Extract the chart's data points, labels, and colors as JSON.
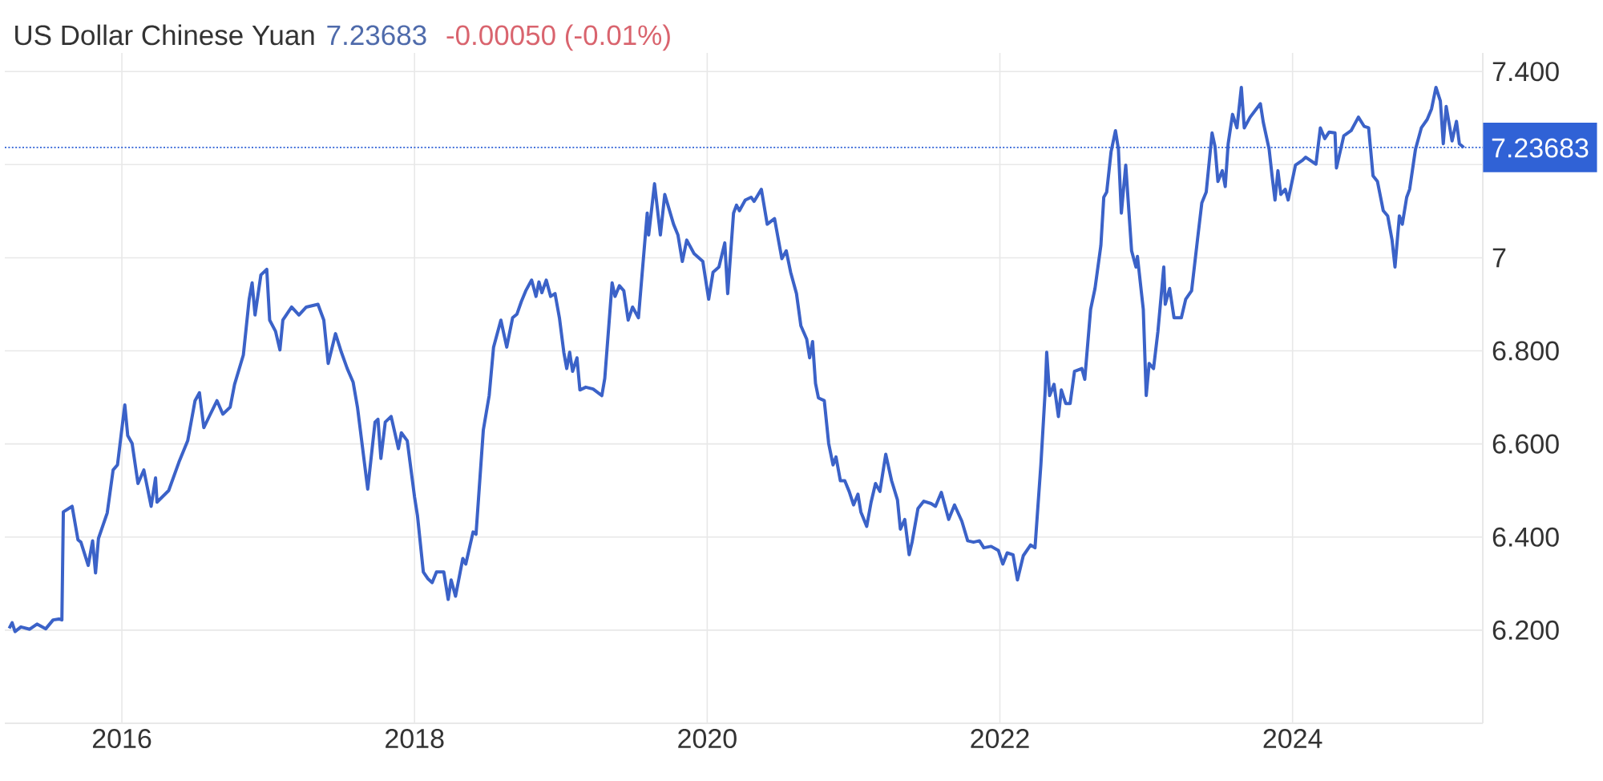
{
  "chart_data": {
    "type": "line",
    "title": "US Dollar Chinese Yuan",
    "annotations": [
      "7.23683",
      "-0.00050 (-0.01%)"
    ],
    "x": [
      2015.23,
      2015.25,
      2015.27,
      2015.31,
      2015.37,
      2015.42,
      2015.48,
      2015.53,
      2015.57,
      2015.59,
      2015.6,
      2015.66,
      2015.7,
      2015.72,
      2015.77,
      2015.8,
      2015.82,
      2015.84,
      2015.9,
      2015.94,
      2015.97,
      2016.02,
      2016.04,
      2016.07,
      2016.11,
      2016.15,
      2016.2,
      2016.23,
      2016.24,
      2016.32,
      2016.39,
      2016.45,
      2016.5,
      2016.53,
      2016.56,
      2016.6,
      2016.65,
      2016.69,
      2016.74,
      2016.77,
      2016.83,
      2016.87,
      2016.89,
      2016.91,
      2016.95,
      2016.99,
      2017.01,
      2017.05,
      2017.08,
      2017.1,
      2017.16,
      2017.21,
      2017.26,
      2017.34,
      2017.38,
      2017.41,
      2017.46,
      2017.5,
      2017.54,
      2017.58,
      2017.61,
      2017.68,
      2017.73,
      2017.75,
      2017.77,
      2017.8,
      2017.84,
      2017.89,
      2017.91,
      2017.95,
      2018,
      2018.02,
      2018.06,
      2018.09,
      2018.12,
      2018.15,
      2018.2,
      2018.23,
      2018.25,
      2018.28,
      2018.33,
      2018.35,
      2018.4,
      2018.42,
      2018.47,
      2018.51,
      2018.54,
      2018.59,
      2018.63,
      2018.67,
      2018.7,
      2018.73,
      2018.76,
      2018.8,
      2018.83,
      2018.85,
      2018.87,
      2018.9,
      2018.93,
      2018.96,
      2018.99,
      2019.02,
      2019.04,
      2019.06,
      2019.08,
      2019.11,
      2019.13,
      2019.17,
      2019.22,
      2019.28,
      2019.3,
      2019.35,
      2019.37,
      2019.4,
      2019.43,
      2019.46,
      2019.49,
      2019.53,
      2019.59,
      2019.6,
      2019.64,
      2019.68,
      2019.71,
      2019.77,
      2019.8,
      2019.83,
      2019.86,
      2019.91,
      2019.97,
      2020.01,
      2020.04,
      2020.08,
      2020.12,
      2020.14,
      2020.18,
      2020.2,
      2020.22,
      2020.26,
      2020.3,
      2020.32,
      2020.37,
      2020.41,
      2020.46,
      2020.51,
      2020.54,
      2020.57,
      2020.61,
      2020.64,
      2020.68,
      2020.7,
      2020.72,
      2020.74,
      2020.76,
      2020.8,
      2020.83,
      2020.86,
      2020.88,
      2020.91,
      2020.94,
      2020.97,
      2021,
      2021.03,
      2021.05,
      2021.09,
      2021.12,
      2021.15,
      2021.18,
      2021.22,
      2021.26,
      2021.3,
      2021.32,
      2021.35,
      2021.38,
      2021.4,
      2021.44,
      2021.48,
      2021.53,
      2021.56,
      2021.6,
      2021.65,
      2021.69,
      2021.74,
      2021.78,
      2021.82,
      2021.86,
      2021.89,
      2021.94,
      2021.99,
      2022.02,
      2022.05,
      2022.09,
      2022.12,
      2022.16,
      2022.21,
      2022.24,
      2022.28,
      2022.31,
      2022.32,
      2022.34,
      2022.37,
      2022.4,
      2022.42,
      2022.45,
      2022.48,
      2022.51,
      2022.56,
      2022.58,
      2022.62,
      2022.65,
      2022.69,
      2022.71,
      2022.73,
      2022.76,
      2022.79,
      2022.81,
      2022.83,
      2022.86,
      2022.9,
      2022.93,
      2022.94,
      2022.98,
      2023,
      2023.02,
      2023.05,
      2023.08,
      2023.12,
      2023.13,
      2023.16,
      2023.19,
      2023.24,
      2023.27,
      2023.31,
      2023.35,
      2023.38,
      2023.41,
      2023.45,
      2023.47,
      2023.49,
      2023.52,
      2023.54,
      2023.56,
      2023.59,
      2023.62,
      2023.65,
      2023.67,
      2023.71,
      2023.78,
      2023.8,
      2023.84,
      2023.86,
      2023.88,
      2023.9,
      2023.92,
      2023.95,
      2023.97,
      2024.02,
      2024.07,
      2024.09,
      2024.16,
      2024.19,
      2024.22,
      2024.25,
      2024.29,
      2024.3,
      2024.35,
      2024.4,
      2024.45,
      2024.49,
      2024.52,
      2024.55,
      2024.58,
      2024.62,
      2024.65,
      2024.68,
      2024.7,
      2024.73,
      2024.75,
      2024.78,
      2024.8,
      2024.84,
      2024.88,
      2024.92,
      2024.95,
      2024.98,
      2025.01,
      2025.03,
      2025.05,
      2025.09,
      2025.12,
      2025.14,
      2025.17
    ],
    "series": [
      {
        "color": "#3b62c8",
        "values": [
          6.204,
          6.216,
          6.197,
          6.207,
          6.202,
          6.213,
          6.203,
          6.222,
          6.224,
          6.222,
          6.454,
          6.466,
          6.394,
          6.389,
          6.339,
          6.392,
          6.323,
          6.397,
          6.452,
          6.544,
          6.555,
          6.684,
          6.618,
          6.601,
          6.515,
          6.544,
          6.466,
          6.527,
          6.475,
          6.5,
          6.561,
          6.607,
          6.693,
          6.71,
          6.635,
          6.661,
          6.693,
          6.664,
          6.679,
          6.728,
          6.791,
          6.911,
          6.946,
          6.877,
          6.963,
          6.975,
          6.866,
          6.842,
          6.802,
          6.866,
          6.894,
          6.877,
          6.894,
          6.9,
          6.866,
          6.773,
          6.837,
          6.797,
          6.762,
          6.733,
          6.679,
          6.503,
          6.647,
          6.653,
          6.569,
          6.647,
          6.659,
          6.59,
          6.624,
          6.607,
          6.486,
          6.446,
          6.325,
          6.311,
          6.302,
          6.325,
          6.325,
          6.266,
          6.308,
          6.273,
          6.354,
          6.342,
          6.411,
          6.406,
          6.63,
          6.704,
          6.808,
          6.866,
          6.808,
          6.871,
          6.879,
          6.906,
          6.929,
          6.952,
          6.917,
          6.948,
          6.925,
          6.952,
          6.917,
          6.923,
          6.871,
          6.797,
          6.762,
          6.797,
          6.756,
          6.785,
          6.716,
          6.722,
          6.718,
          6.704,
          6.741,
          6.946,
          6.917,
          6.94,
          6.929,
          6.866,
          6.894,
          6.871,
          7.096,
          7.049,
          7.159,
          7.049,
          7.136,
          7.072,
          7.049,
          6.992,
          7.038,
          7.009,
          6.992,
          6.911,
          6.969,
          6.98,
          7.032,
          6.923,
          7.096,
          7.113,
          7.101,
          7.124,
          7.13,
          7.121,
          7.147,
          7.072,
          7.084,
          6.998,
          7.015,
          6.969,
          6.923,
          6.854,
          6.825,
          6.785,
          6.82,
          6.73,
          6.699,
          6.693,
          6.601,
          6.555,
          6.572,
          6.521,
          6.521,
          6.498,
          6.469,
          6.492,
          6.454,
          6.423,
          6.475,
          6.515,
          6.498,
          6.578,
          6.521,
          6.48,
          6.417,
          6.438,
          6.362,
          6.389,
          6.461,
          6.477,
          6.472,
          6.466,
          6.496,
          6.438,
          6.469,
          6.434,
          6.392,
          6.389,
          6.392,
          6.377,
          6.38,
          6.371,
          6.342,
          6.366,
          6.362,
          6.308,
          6.36,
          6.383,
          6.377,
          6.555,
          6.716,
          6.797,
          6.704,
          6.728,
          6.659,
          6.716,
          6.687,
          6.687,
          6.756,
          6.762,
          6.739,
          6.889,
          6.934,
          7.026,
          7.13,
          7.141,
          7.228,
          7.273,
          7.233,
          7.096,
          7.199,
          7.015,
          6.98,
          7.003,
          6.889,
          6.704,
          6.773,
          6.762,
          6.842,
          6.98,
          6.9,
          6.934,
          6.871,
          6.871,
          6.911,
          6.929,
          7.038,
          7.118,
          7.141,
          7.268,
          7.239,
          7.164,
          7.187,
          7.153,
          7.245,
          7.308,
          7.279,
          7.366,
          7.279,
          7.302,
          7.331,
          7.291,
          7.233,
          7.176,
          7.124,
          7.187,
          7.136,
          7.147,
          7.124,
          7.199,
          7.21,
          7.216,
          7.201,
          7.279,
          7.256,
          7.27,
          7.268,
          7.193,
          7.262,
          7.273,
          7.302,
          7.282,
          7.279,
          7.176,
          7.164,
          7.101,
          7.09,
          7.038,
          6.98,
          7.09,
          7.072,
          7.13,
          7.147,
          7.233,
          7.279,
          7.297,
          7.32,
          7.366,
          7.337,
          7.245,
          7.325,
          7.251,
          7.293,
          7.245,
          7.23683
        ]
      }
    ],
    "xlim": [
      2015.2,
      2025.3
    ],
    "xticks": [
      2016,
      2018,
      2020,
      2022,
      2024
    ],
    "ylim": [
      6,
      7.44
    ],
    "yticks": [
      {
        "value": 6,
        "label": null
      },
      {
        "value": 6.2,
        "label": "6.200"
      },
      {
        "value": 6.4,
        "label": "6.400"
      },
      {
        "value": 6.6,
        "label": "6.600"
      },
      {
        "value": 6.8,
        "label": "6.800"
      },
      7,
      {
        "value": 7.2,
        "label": null
      },
      {
        "value": 7.4,
        "label": "7.400"
      }
    ],
    "grid": true,
    "marker": "none",
    "line_style": "solid",
    "ref_lines": [
      {
        "axis": "y",
        "value": 7.23683,
        "label": "7.23683",
        "color": "#3062d6",
        "line_style": "dotted"
      }
    ]
  }
}
